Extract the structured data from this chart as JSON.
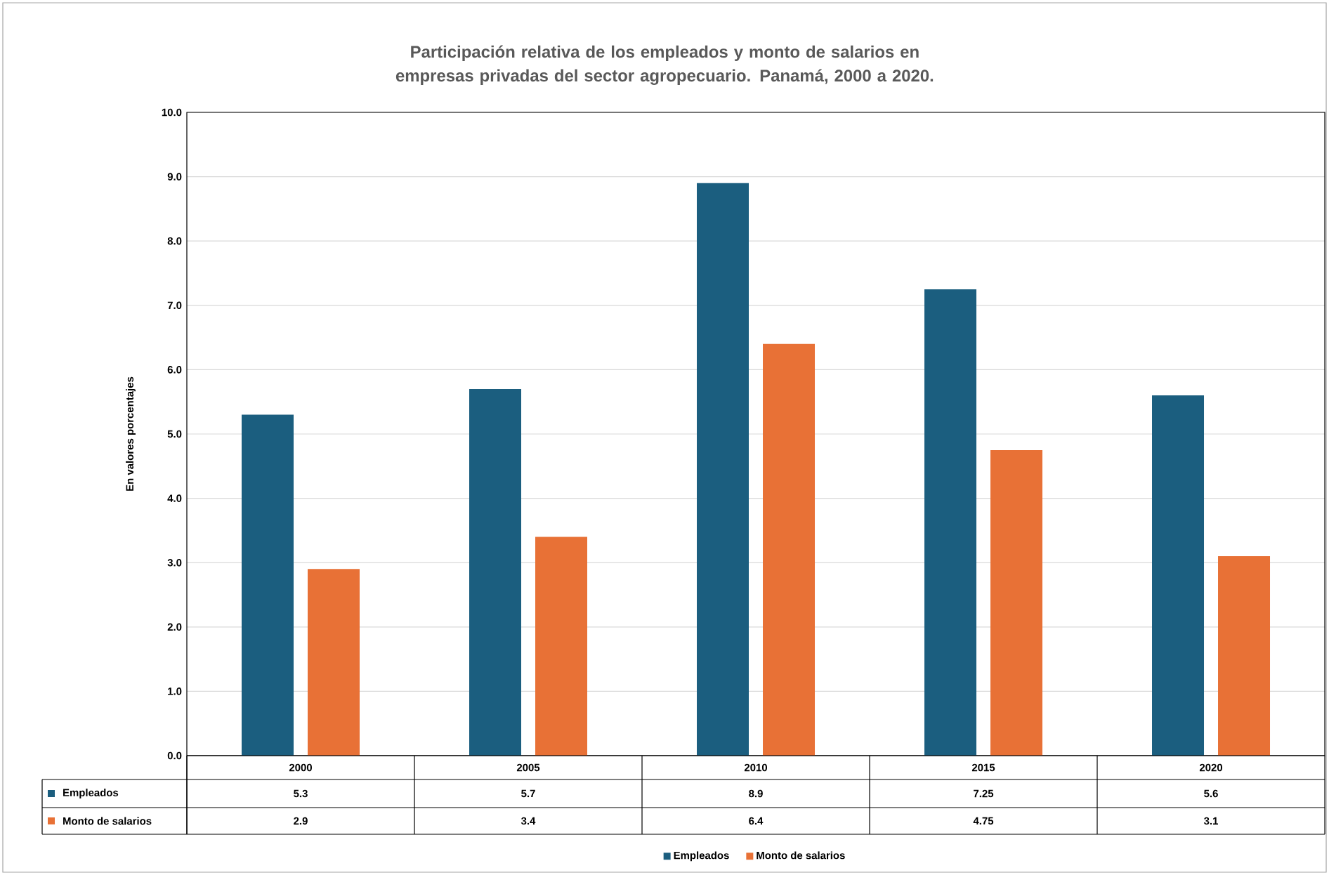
{
  "chart_data": {
    "type": "bar",
    "title": "Participación relativa de los empleados y monto de salarios en empresas privadas del sector agropecuario.  Panamá, 2000 a 2020.",
    "ylabel": "En valores porcentajes",
    "categories": [
      "2000",
      "2005",
      "2010",
      "2015",
      "2020"
    ],
    "series": [
      {
        "name": "Empleados",
        "color": "#1b5e7f",
        "values": [
          5.3,
          5.7,
          8.9,
          7.25,
          5.6
        ]
      },
      {
        "name": "Monto de salarios",
        "color": "#e87136",
        "values": [
          2.9,
          3.4,
          6.4,
          4.75,
          3.1
        ]
      }
    ],
    "ylim": [
      0,
      10
    ],
    "yticks": [
      {
        "value": 0,
        "label": "0.0"
      },
      {
        "value": 1,
        "label": "1.0"
      },
      {
        "value": 2,
        "label": "2.0"
      },
      {
        "value": 3,
        "label": "3.0"
      },
      {
        "value": 4,
        "label": "4.0"
      },
      {
        "value": 5,
        "label": "5.0"
      },
      {
        "value": 6,
        "label": "6.0"
      },
      {
        "value": 7,
        "label": "7.0"
      },
      {
        "value": 8,
        "label": "8.0"
      },
      {
        "value": 9,
        "label": "9.0"
      },
      {
        "value": 10,
        "label": "10.0"
      }
    ],
    "grid": "y",
    "legend": "bottom",
    "data_labels": true
  }
}
